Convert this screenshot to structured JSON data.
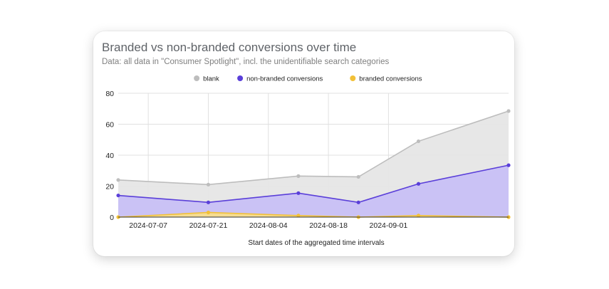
{
  "chart_data": {
    "type": "area",
    "title": "Branded vs non-branded conversions over time",
    "subtitle": "Data: all data in \"Consumer Spotlight\", incl. the unidentifiable search categories",
    "xlabel": "Start dates of the aggregated time intervals",
    "ylabel": "",
    "x": [
      "2024-06-30",
      "2024-07-21",
      "2024-08-11",
      "2024-08-25",
      "2024-09-08",
      "2024-09-29"
    ],
    "x_tick_labels": [
      "2024-07-07",
      "2024-07-21",
      "2024-08-04",
      "2024-08-18",
      "2024-09-01"
    ],
    "x_tick_dates": [
      "2024-07-07",
      "2024-07-21",
      "2024-08-04",
      "2024-08-18",
      "2024-09-01"
    ],
    "xlim": [
      "2024-06-30",
      "2024-09-29"
    ],
    "ylim": [
      0,
      80
    ],
    "y_ticks": [
      0,
      20,
      40,
      60,
      80
    ],
    "grid": true,
    "legend_position": "top",
    "series": [
      {
        "name": "blank",
        "color": "#bdbdbd",
        "fill": "#e6e6e6",
        "values": [
          24,
          21,
          26.5,
          26,
          49,
          68.5
        ]
      },
      {
        "name": "non-branded conversions",
        "color": "#5a3fd9",
        "fill": "#c8c0f5",
        "values": [
          14,
          9.5,
          15.5,
          9.5,
          21.5,
          33.5
        ]
      },
      {
        "name": "branded conversions",
        "color": "#f2c037",
        "fill": "#f7dd8c",
        "values": [
          0,
          3,
          1,
          0,
          1,
          0
        ]
      }
    ]
  }
}
